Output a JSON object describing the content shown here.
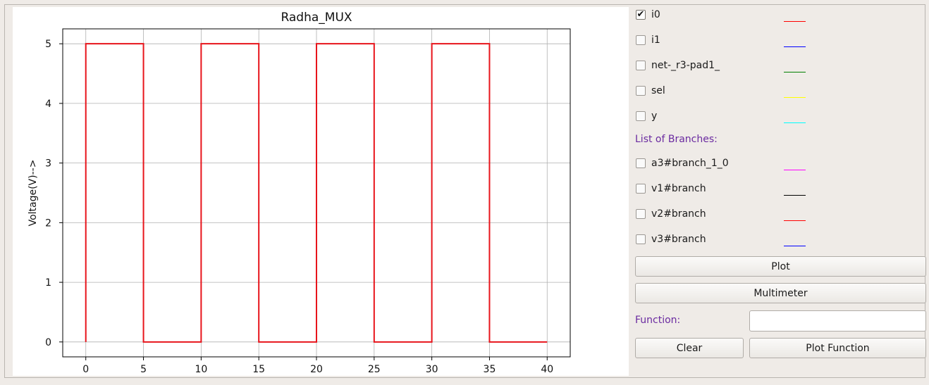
{
  "chart_data": {
    "type": "line",
    "title": "Radha_MUX",
    "ylabel": "Voltage(V)-->",
    "xlabel": "",
    "xlim": [
      -2,
      42
    ],
    "ylim": [
      -0.25,
      5.25
    ],
    "x_ticks": [
      "0",
      "5",
      "10",
      "15",
      "20",
      "25",
      "30",
      "35",
      "40"
    ],
    "y_ticks": [
      "0",
      "1",
      "2",
      "3",
      "4",
      "5"
    ],
    "grid": true,
    "series": [
      {
        "name": "i0",
        "color": "#e8141b",
        "x": [
          0,
          0,
          5,
          5,
          10,
          10,
          15,
          15,
          20,
          20,
          25,
          25,
          30,
          30,
          35,
          35,
          40
        ],
        "y": [
          0,
          5,
          5,
          0,
          0,
          5,
          5,
          0,
          0,
          5,
          5,
          0,
          0,
          5,
          5,
          0,
          0
        ]
      }
    ]
  },
  "nodes": [
    {
      "label": "i0",
      "checked": true,
      "checkmark": "✔",
      "color": "#ff0000"
    },
    {
      "label": "i1",
      "checked": false,
      "color": "#0000ff"
    },
    {
      "label": "net-_r3-pad1_",
      "checked": false,
      "color": "#008000"
    },
    {
      "label": "sel",
      "checked": false,
      "color": "#ffff00"
    },
    {
      "label": "y",
      "checked": false,
      "color": "#00ffff"
    }
  ],
  "branches_label": "List of Branches:",
  "branches": [
    {
      "label": "a3#branch_1_0",
      "checked": false,
      "color": "#ff00ff"
    },
    {
      "label": "v1#branch",
      "checked": false,
      "color": "#000000"
    },
    {
      "label": "v2#branch",
      "checked": false,
      "color": "#ff0000"
    },
    {
      "label": "v3#branch",
      "checked": false,
      "color": "#0000ff"
    }
  ],
  "buttons": {
    "plot": "Plot",
    "multimeter": "Multimeter",
    "clear": "Clear",
    "plot_function": "Plot Function"
  },
  "function": {
    "label": "Function:",
    "value": ""
  }
}
